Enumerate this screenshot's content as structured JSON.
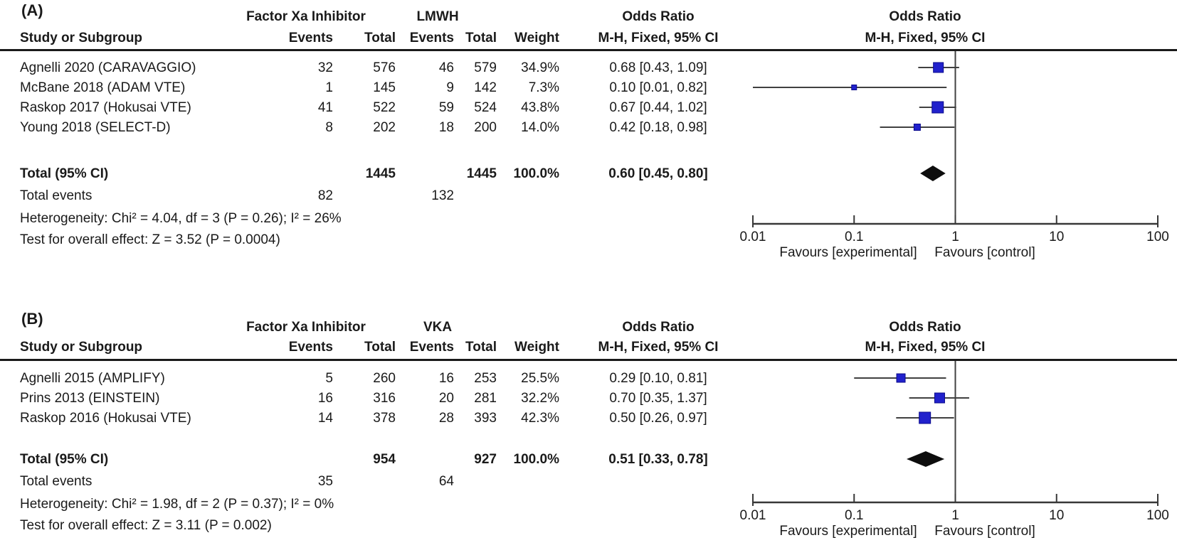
{
  "colors": {
    "square": "#2121cc",
    "square_border": "#0b0b8c",
    "ci_line": "#404040",
    "axis": "#383838",
    "diamond": "#0d0d0d",
    "rule": "#1a1a1a",
    "text": "#1a1a1a"
  },
  "headers": {
    "study": "Study or Subgroup",
    "events": "Events",
    "total": "Total",
    "weight": "Weight"
  },
  "axis": {
    "tick_labels": [
      "0.01",
      "0.1",
      "1",
      "10",
      "100"
    ]
  },
  "chart_data": [
    {
      "type": "scatter",
      "subtype": "forest-plot",
      "panel_label": "(A)",
      "experimental_group": "Factor Xa Inhibitor",
      "control_group": "LMWH",
      "effect_measure": "Odds Ratio",
      "method": "M-H, Fixed, 95% CI",
      "x_scale": "log",
      "xlim": [
        0.01,
        100
      ],
      "x_ticks": [
        0.01,
        0.1,
        1,
        10,
        100
      ],
      "studies": [
        {
          "name": "Agnelli 2020 (CARAVAGGIO)",
          "exp_events": "32",
          "exp_total": "576",
          "ctrl_events": "46",
          "ctrl_total": "579",
          "weight": "34.9%",
          "weight_pct": 34.9,
          "or": 0.68,
          "ci_low": 0.43,
          "ci_high": 1.09,
          "or_text": "0.68 [0.43, 1.09]"
        },
        {
          "name": "McBane 2018 (ADAM VTE)",
          "exp_events": "1",
          "exp_total": "145",
          "ctrl_events": "9",
          "ctrl_total": "142",
          "weight": "7.3%",
          "weight_pct": 7.3,
          "or": 0.1,
          "ci_low": 0.01,
          "ci_high": 0.82,
          "or_text": "0.10 [0.01, 0.82]"
        },
        {
          "name": "Raskop 2017 (Hokusai VTE)",
          "exp_events": "41",
          "exp_total": "522",
          "ctrl_events": "59",
          "ctrl_total": "524",
          "weight": "43.8%",
          "weight_pct": 43.8,
          "or": 0.67,
          "ci_low": 0.44,
          "ci_high": 1.02,
          "or_text": "0.67 [0.44, 1.02]"
        },
        {
          "name": "Young 2018 (SELECT-D)",
          "exp_events": "8",
          "exp_total": "202",
          "ctrl_events": "18",
          "ctrl_total": "200",
          "weight": "14.0%",
          "weight_pct": 14.0,
          "or": 0.42,
          "ci_low": 0.18,
          "ci_high": 0.98,
          "or_text": "0.42 [0.18, 0.98]"
        }
      ],
      "total": {
        "label": "Total (95% CI)",
        "exp_total": "1445",
        "ctrl_total": "1445",
        "weight": "100.0%",
        "or": 0.6,
        "ci_low": 0.45,
        "ci_high": 0.8,
        "or_text": "0.60 [0.45, 0.80]"
      },
      "total_events": {
        "label": "Total events",
        "exp": "82",
        "ctrl": "132"
      },
      "heterogeneity": "Heterogeneity: Chi² = 4.04, df = 3 (P = 0.26); I² = 26%",
      "overall_effect": "Test for overall effect: Z = 3.52 (P = 0.0004)",
      "favours_left": "Favours [experimental]",
      "favours_right": "Favours [control]"
    },
    {
      "type": "scatter",
      "subtype": "forest-plot",
      "panel_label": "(B)",
      "experimental_group": "Factor Xa Inhibitor",
      "control_group": "VKA",
      "effect_measure": "Odds Ratio",
      "method": "M-H, Fixed, 95% CI",
      "x_scale": "log",
      "xlim": [
        0.01,
        100
      ],
      "x_ticks": [
        0.01,
        0.1,
        1,
        10,
        100
      ],
      "studies": [
        {
          "name": "Agnelli 2015 (AMPLIFY)",
          "exp_events": "5",
          "exp_total": "260",
          "ctrl_events": "16",
          "ctrl_total": "253",
          "weight": "25.5%",
          "weight_pct": 25.5,
          "or": 0.29,
          "ci_low": 0.1,
          "ci_high": 0.81,
          "or_text": "0.29 [0.10, 0.81]"
        },
        {
          "name": "Prins 2013 (EINSTEIN)",
          "exp_events": "16",
          "exp_total": "316",
          "ctrl_events": "20",
          "ctrl_total": "281",
          "weight": "32.2%",
          "weight_pct": 32.2,
          "or": 0.7,
          "ci_low": 0.35,
          "ci_high": 1.37,
          "or_text": "0.70 [0.35, 1.37]"
        },
        {
          "name": "Raskop 2016 (Hokusai VTE)",
          "exp_events": "14",
          "exp_total": "378",
          "ctrl_events": "28",
          "ctrl_total": "393",
          "weight": "42.3%",
          "weight_pct": 42.3,
          "or": 0.5,
          "ci_low": 0.26,
          "ci_high": 0.97,
          "or_text": "0.50 [0.26, 0.97]"
        }
      ],
      "total": {
        "label": "Total (95% CI)",
        "exp_total": "954",
        "ctrl_total": "927",
        "weight": "100.0%",
        "or": 0.51,
        "ci_low": 0.33,
        "ci_high": 0.78,
        "or_text": "0.51 [0.33, 0.78]"
      },
      "total_events": {
        "label": "Total events",
        "exp": "35",
        "ctrl": "64"
      },
      "heterogeneity": "Heterogeneity: Chi² = 1.98, df = 2 (P = 0.37); I² = 0%",
      "overall_effect": "Test for overall effect: Z = 3.11 (P = 0.002)",
      "favours_left": "Favours [experimental]",
      "favours_right": "Favours [control]"
    }
  ]
}
